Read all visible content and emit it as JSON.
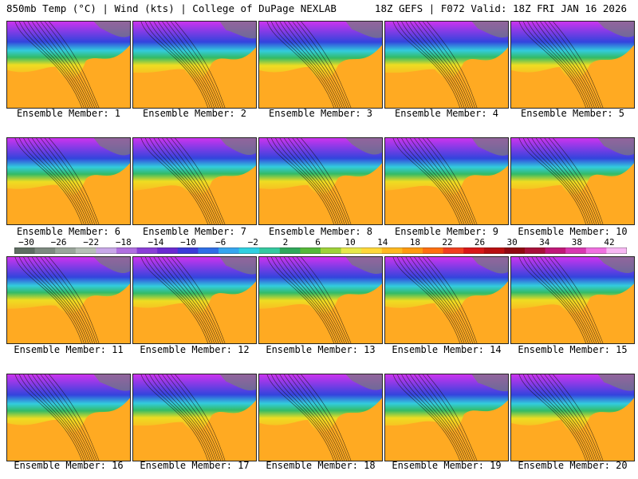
{
  "header": {
    "left": "850mb Temp (°C) | Wind (kts) | College of DuPage NEXLAB",
    "right": "18Z GEFS | F072 Valid: 18Z FRI JAN 16 2026"
  },
  "panels": [
    {
      "label": "Ensemble Member: 1"
    },
    {
      "label": "Ensemble Member: 2"
    },
    {
      "label": "Ensemble Member: 3"
    },
    {
      "label": "Ensemble Member: 4"
    },
    {
      "label": "Ensemble Member: 5"
    },
    {
      "label": "Ensemble Member: 6"
    },
    {
      "label": "Ensemble Member: 7"
    },
    {
      "label": "Ensemble Member: 8"
    },
    {
      "label": "Ensemble Member: 9"
    },
    {
      "label": "Ensemble Member: 10"
    },
    {
      "label": "Ensemble Member: 11"
    },
    {
      "label": "Ensemble Member: 12"
    },
    {
      "label": "Ensemble Member: 13"
    },
    {
      "label": "Ensemble Member: 14"
    },
    {
      "label": "Ensemble Member: 15"
    },
    {
      "label": "Ensemble Member: 16"
    },
    {
      "label": "Ensemble Member: 17"
    },
    {
      "label": "Ensemble Member: 18"
    },
    {
      "label": "Ensemble Member: 19"
    },
    {
      "label": "Ensemble Member: 20"
    }
  ],
  "colorbar": {
    "labels": [
      "−30",
      "−26",
      "−22",
      "−18",
      "−14",
      "−10",
      "−6",
      "−2",
      "2",
      "6",
      "10",
      "14",
      "18",
      "22",
      "26",
      "30",
      "34",
      "38",
      "42"
    ],
    "colors": [
      "#5f6e62",
      "#7d8a7f",
      "#9aa69b",
      "#b7c0b7",
      "#c8a8e8",
      "#b070e0",
      "#8a3fd6",
      "#6a2ad0",
      "#3b3bd8",
      "#2f6fe6",
      "#36a6ef",
      "#2fd0e0",
      "#35c9a0",
      "#2fa85a",
      "#56b83a",
      "#9fd23a",
      "#e6e84a",
      "#ffd83a",
      "#ffb820",
      "#ff9a10",
      "#ff7010",
      "#f04020",
      "#d81818",
      "#b80f10",
      "#900810",
      "#a8103a",
      "#c01878",
      "#d838b0",
      "#f070e0",
      "#f8b8f4"
    ]
  },
  "legend_colors": {
    "cold_purple": "#cc33ee",
    "blue": "#3344dd",
    "cyan": "#33ccdd",
    "green": "#33bb66",
    "yellow": "#eedd22",
    "orange": "#ffaa22",
    "land_gray": "#7a7a7a"
  }
}
